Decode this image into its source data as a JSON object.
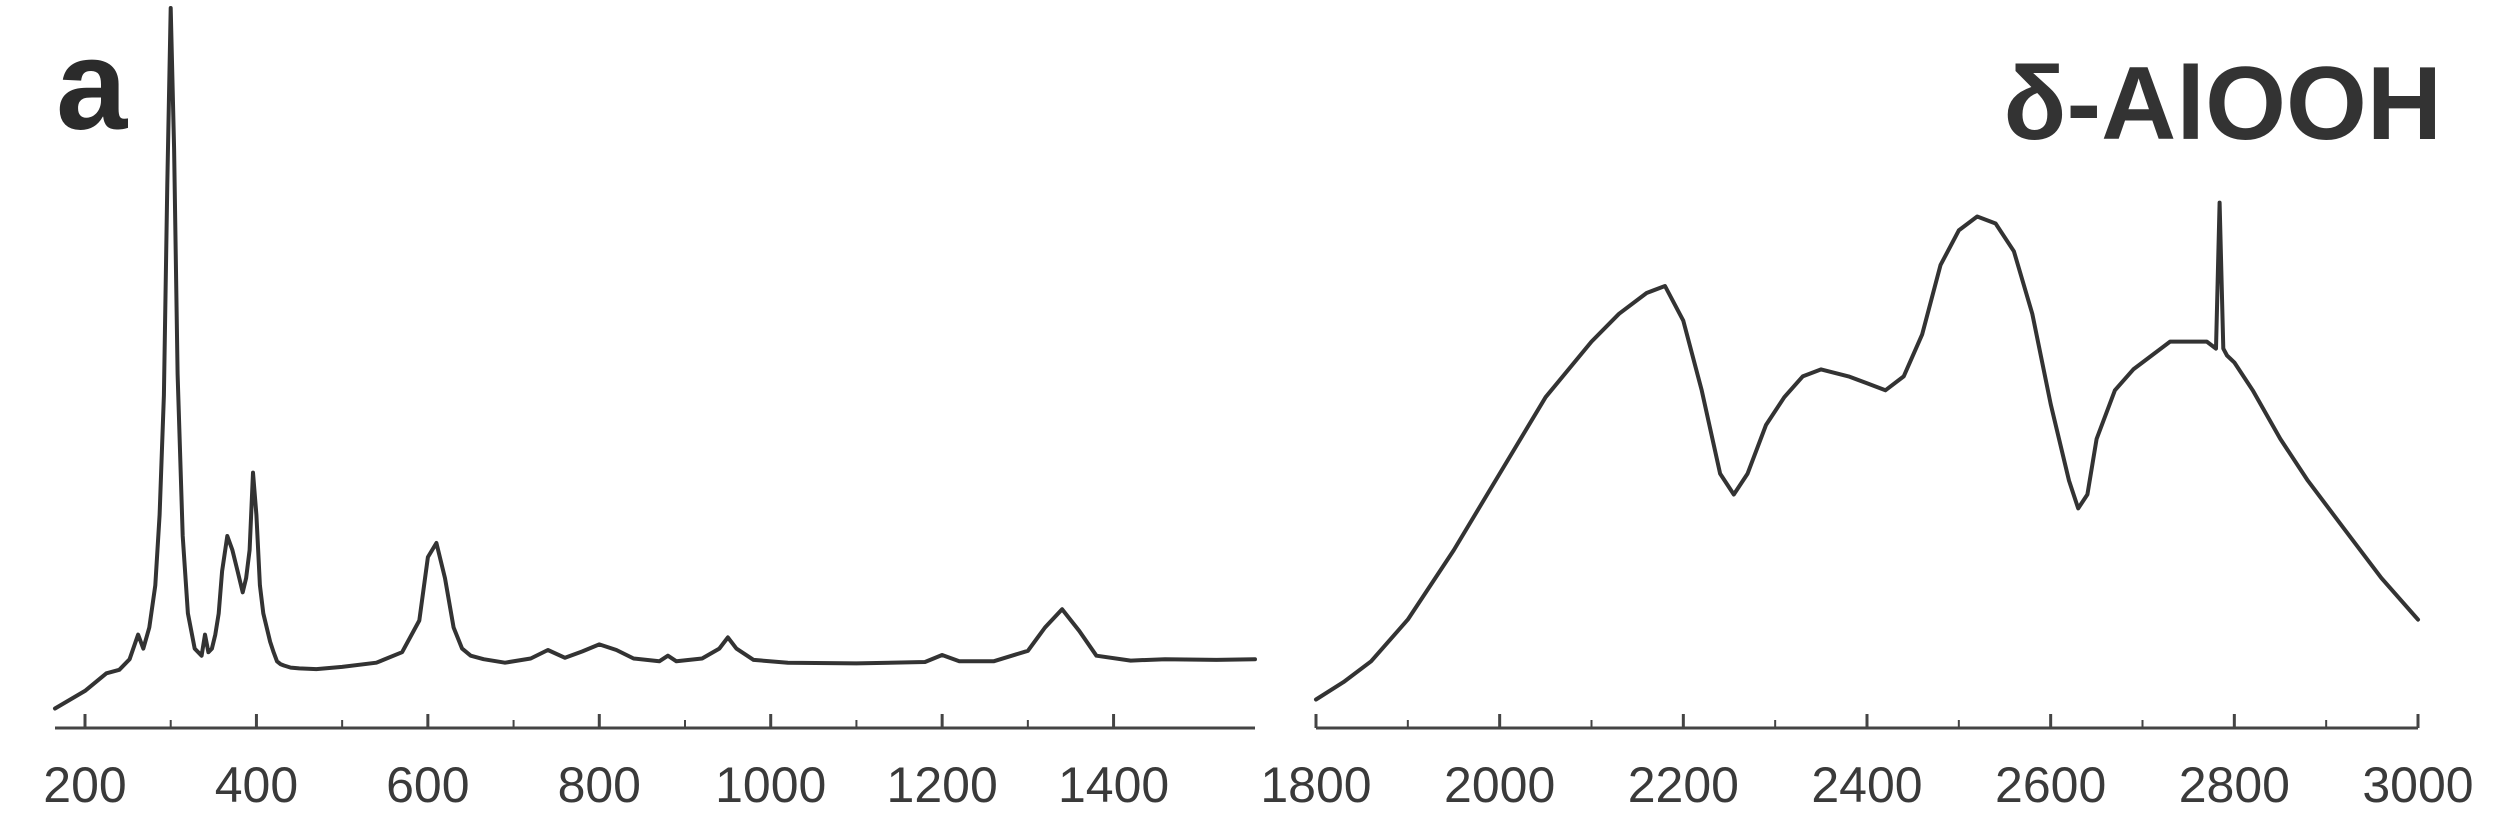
{
  "panel_label": "a",
  "title": "δ-AlOOH",
  "colors": {
    "line": "#333333",
    "axis": "#444444",
    "text": "#333333"
  },
  "chart_data": [
    {
      "type": "line",
      "title": "",
      "xlabel": "",
      "ylabel": "",
      "xlim": [
        165,
        1565
      ],
      "ylim": [
        0,
        100
      ],
      "grid": false,
      "xticks": [
        200,
        400,
        600,
        800,
        1000,
        1200,
        1400
      ],
      "tick_labels": [
        "200",
        "400",
        "600",
        "800",
        "1000",
        "1200",
        "1400"
      ],
      "x": [
        165,
        200,
        225,
        240,
        252,
        262,
        268,
        275,
        282,
        287,
        292,
        296,
        300,
        304,
        308,
        314,
        320,
        328,
        336,
        340,
        344,
        348,
        352,
        356,
        360,
        366,
        372,
        378,
        384,
        388,
        392,
        396,
        400,
        404,
        408,
        412,
        416,
        420,
        424,
        428,
        432,
        440,
        450,
        470,
        500,
        540,
        570,
        590,
        600,
        610,
        620,
        630,
        640,
        650,
        665,
        690,
        720,
        740,
        760,
        780,
        800,
        820,
        840,
        870,
        880,
        890,
        920,
        940,
        950,
        960,
        980,
        1020,
        1100,
        1180,
        1200,
        1220,
        1260,
        1300,
        1320,
        1340,
        1360,
        1380,
        1420,
        1460,
        1520,
        1565
      ],
      "y": [
        0.5,
        3,
        5.5,
        6,
        7.5,
        11,
        9,
        12,
        18,
        28,
        45,
        75,
        100,
        80,
        48,
        25,
        14,
        9,
        8,
        11,
        8.5,
        9,
        11,
        14,
        20,
        25,
        23,
        20,
        17,
        19,
        23,
        34,
        28,
        18,
        14,
        12,
        10,
        8.5,
        7.2,
        6.8,
        6.6,
        6.3,
        6.2,
        6.1,
        6.4,
        7,
        8.5,
        13,
        22,
        24,
        19,
        12,
        9,
        8,
        7.5,
        7,
        7.6,
        8.8,
        7.7,
        8.6,
        9.6,
        8.8,
        7.6,
        7.2,
        8,
        7.2,
        7.6,
        9,
        10.6,
        9,
        7.4,
        7,
        6.9,
        7.1,
        8.1,
        7.2,
        7.2,
        8.7,
        12,
        14.6,
        11.5,
        8,
        7.3,
        7.5,
        7.4,
        7.5
      ]
    },
    {
      "type": "line",
      "title": "",
      "xlabel": "",
      "ylabel": "",
      "xlim": [
        1800,
        3000
      ],
      "ylim": [
        0,
        100
      ],
      "grid": false,
      "xticks": [
        1800,
        2000,
        2200,
        2400,
        2600,
        2800,
        3000
      ],
      "tick_labels": [
        "1800",
        "2000",
        "2200",
        "2400",
        "2600",
        "2800",
        "3000"
      ],
      "x": [
        1800,
        1830,
        1860,
        1900,
        1950,
        2000,
        2050,
        2100,
        2130,
        2160,
        2180,
        2200,
        2220,
        2240,
        2255,
        2270,
        2290,
        2310,
        2330,
        2350,
        2380,
        2400,
        2420,
        2440,
        2460,
        2480,
        2500,
        2520,
        2540,
        2560,
        2580,
        2600,
        2620,
        2630,
        2640,
        2650,
        2670,
        2690,
        2710,
        2730,
        2750,
        2770,
        2780,
        2784,
        2788,
        2792,
        2800,
        2820,
        2850,
        2880,
        2920,
        2960,
        3000
      ],
      "y": [
        0.5,
        3,
        6,
        12,
        22,
        33,
        44,
        52,
        56,
        59,
        60,
        55,
        45,
        33,
        30,
        33,
        40,
        44,
        47,
        48,
        47,
        46,
        45,
        47,
        53,
        63,
        68,
        70,
        69,
        65,
        56,
        43,
        32,
        28,
        30,
        38,
        45,
        48,
        50,
        52,
        52,
        52,
        51,
        72,
        51,
        50,
        49,
        45,
        38,
        32,
        25,
        18,
        12
      ]
    }
  ]
}
